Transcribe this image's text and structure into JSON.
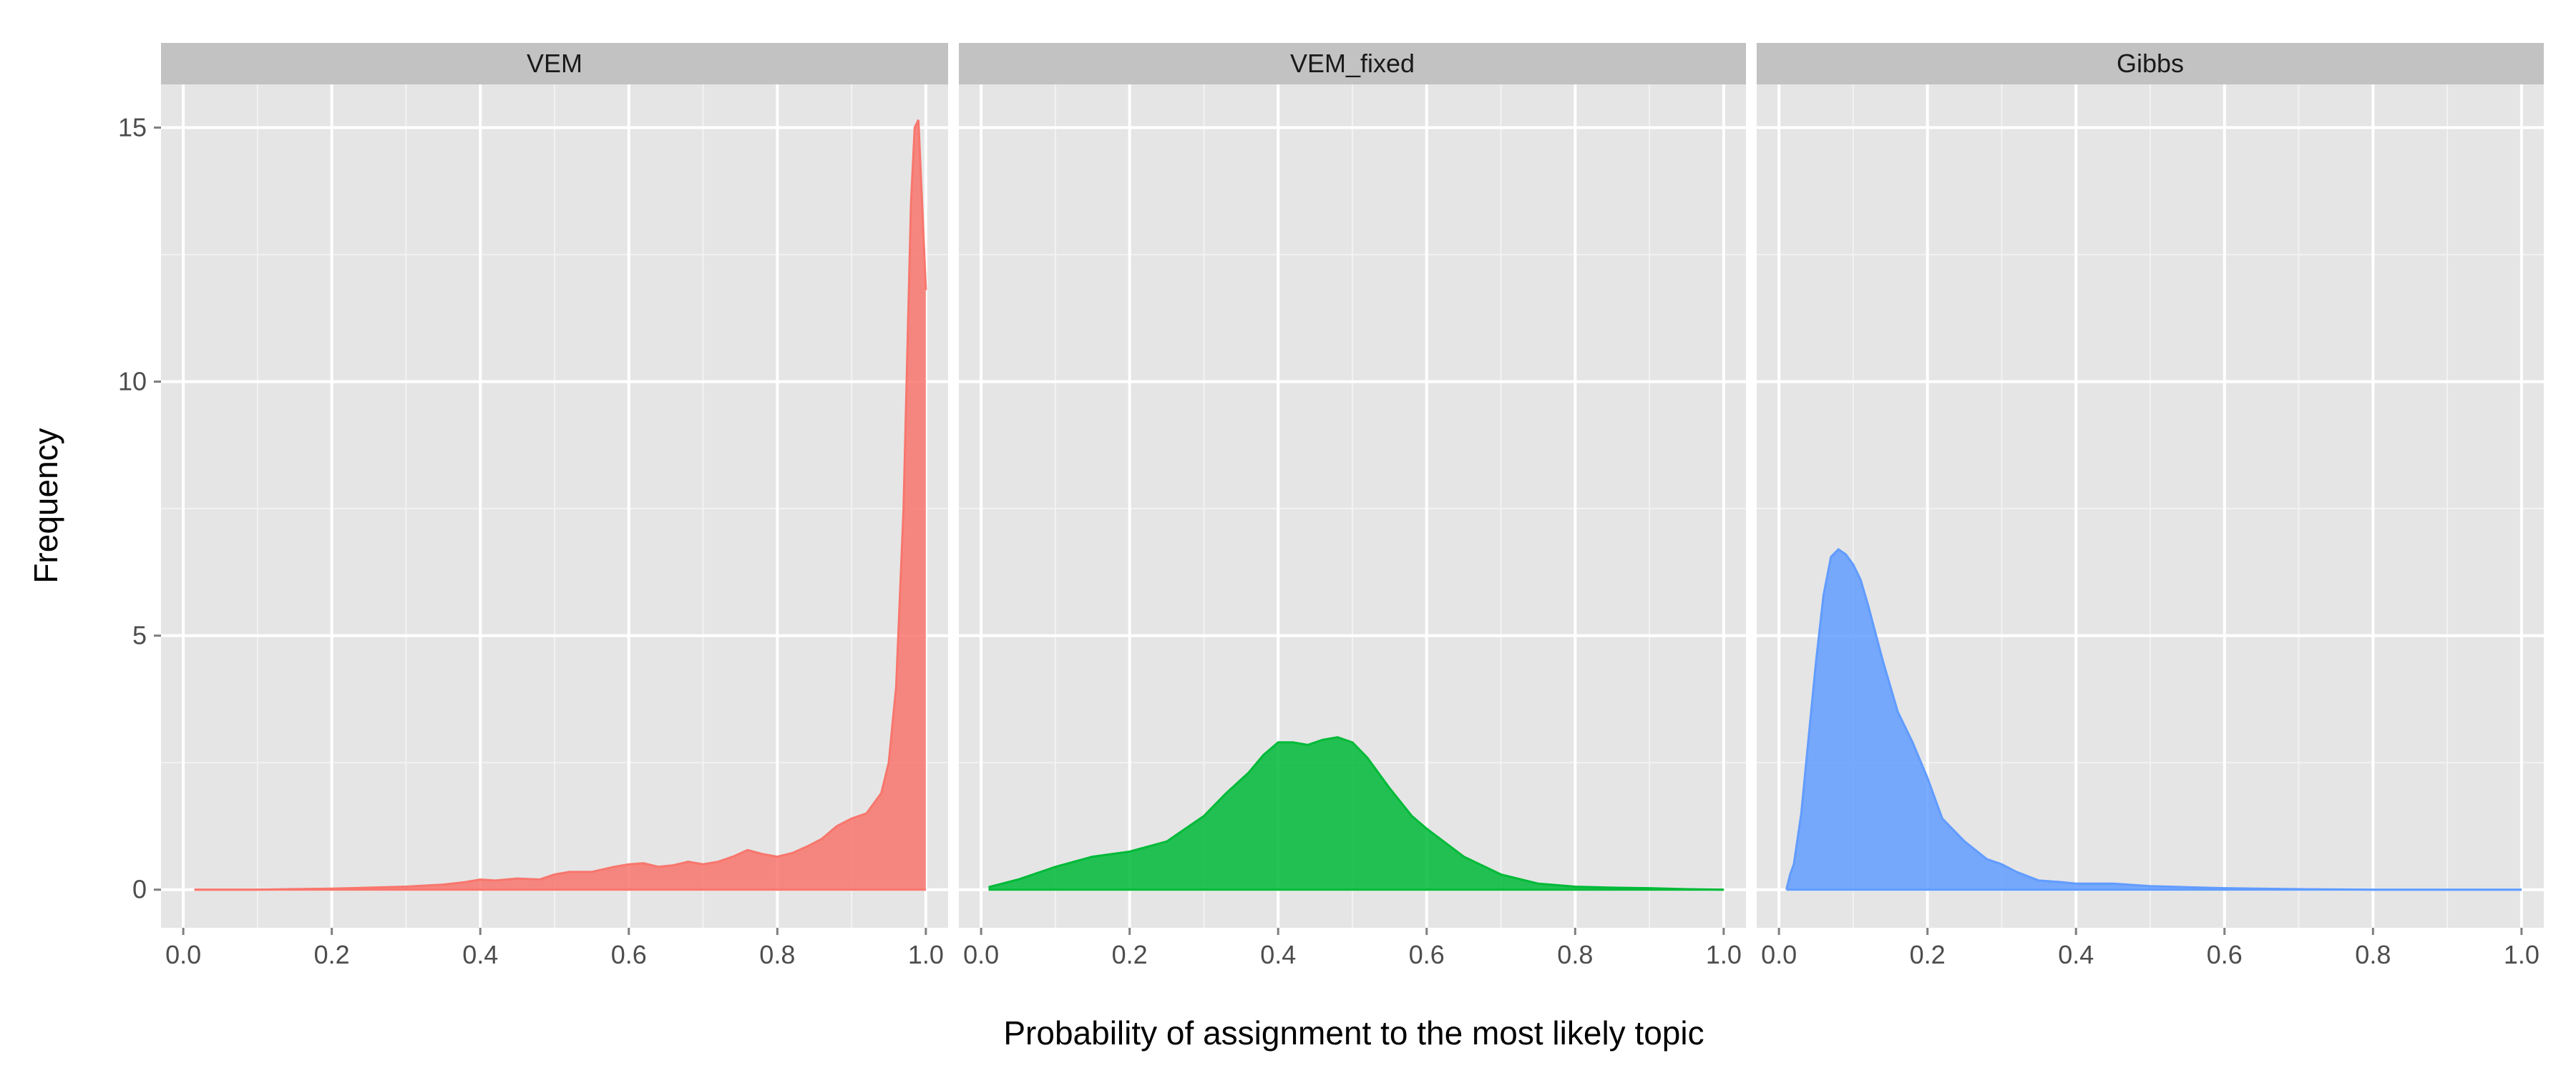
{
  "chart_data": {
    "type": "area",
    "xlabel": "Probability of assignment to the most likely topic",
    "ylabel": "Frequency",
    "xlim": [
      -0.03,
      1.03
    ],
    "ylim": [
      -0.75,
      15.85
    ],
    "x_ticks": [
      0.0,
      0.2,
      0.4,
      0.6,
      0.8,
      1.0
    ],
    "x_tick_labels": [
      "0.0",
      "0.2",
      "0.4",
      "0.6",
      "0.8",
      "1.0"
    ],
    "y_ticks": [
      0,
      5,
      10,
      15
    ],
    "y_tick_labels": [
      "0",
      "5",
      "10",
      "15"
    ],
    "grid": true,
    "legend": "none",
    "panels": [
      {
        "label": "VEM",
        "color": "#F8766D",
        "x": [
          0.015,
          0.1,
          0.2,
          0.25,
          0.3,
          0.35,
          0.38,
          0.4,
          0.42,
          0.45,
          0.48,
          0.5,
          0.52,
          0.55,
          0.58,
          0.6,
          0.62,
          0.64,
          0.66,
          0.68,
          0.7,
          0.72,
          0.74,
          0.76,
          0.78,
          0.8,
          0.82,
          0.84,
          0.86,
          0.88,
          0.9,
          0.92,
          0.94,
          0.95,
          0.96,
          0.97,
          0.975,
          0.98,
          0.985,
          0.99,
          0.995,
          1.0
        ],
        "y": [
          0.0,
          0.0,
          0.02,
          0.04,
          0.06,
          0.1,
          0.15,
          0.2,
          0.18,
          0.22,
          0.2,
          0.3,
          0.35,
          0.35,
          0.45,
          0.5,
          0.52,
          0.45,
          0.48,
          0.55,
          0.5,
          0.55,
          0.65,
          0.78,
          0.7,
          0.65,
          0.72,
          0.85,
          1.0,
          1.25,
          1.4,
          1.5,
          1.9,
          2.5,
          4.0,
          7.5,
          10.5,
          13.5,
          15.0,
          15.15,
          13.5,
          11.8
        ]
      },
      {
        "label": "VEM_fixed",
        "color": "#00BA38",
        "x": [
          0.01,
          0.05,
          0.1,
          0.15,
          0.2,
          0.25,
          0.3,
          0.33,
          0.36,
          0.38,
          0.4,
          0.42,
          0.44,
          0.46,
          0.48,
          0.5,
          0.52,
          0.55,
          0.58,
          0.6,
          0.65,
          0.7,
          0.75,
          0.8,
          0.85,
          0.9,
          0.95,
          1.0
        ],
        "y": [
          0.05,
          0.2,
          0.45,
          0.65,
          0.75,
          0.95,
          1.45,
          1.9,
          2.3,
          2.65,
          2.9,
          2.9,
          2.85,
          2.95,
          3.0,
          2.9,
          2.6,
          2.0,
          1.45,
          1.2,
          0.65,
          0.3,
          0.12,
          0.06,
          0.04,
          0.03,
          0.01,
          0.0
        ]
      },
      {
        "label": "Gibbs",
        "color": "#619CFF",
        "x": [
          0.01,
          0.015,
          0.02,
          0.03,
          0.04,
          0.05,
          0.06,
          0.07,
          0.08,
          0.09,
          0.1,
          0.11,
          0.12,
          0.14,
          0.16,
          0.18,
          0.2,
          0.22,
          0.25,
          0.28,
          0.3,
          0.32,
          0.35,
          0.38,
          0.4,
          0.45,
          0.5,
          0.55,
          0.6,
          0.7,
          0.8,
          0.9,
          1.0
        ],
        "y": [
          0.0,
          0.3,
          0.5,
          1.5,
          3.0,
          4.5,
          5.8,
          6.55,
          6.7,
          6.6,
          6.4,
          6.1,
          5.6,
          4.5,
          3.5,
          2.9,
          2.2,
          1.4,
          0.95,
          0.6,
          0.5,
          0.35,
          0.18,
          0.15,
          0.12,
          0.12,
          0.07,
          0.05,
          0.03,
          0.01,
          0.0,
          0.0,
          0.0
        ]
      }
    ]
  }
}
